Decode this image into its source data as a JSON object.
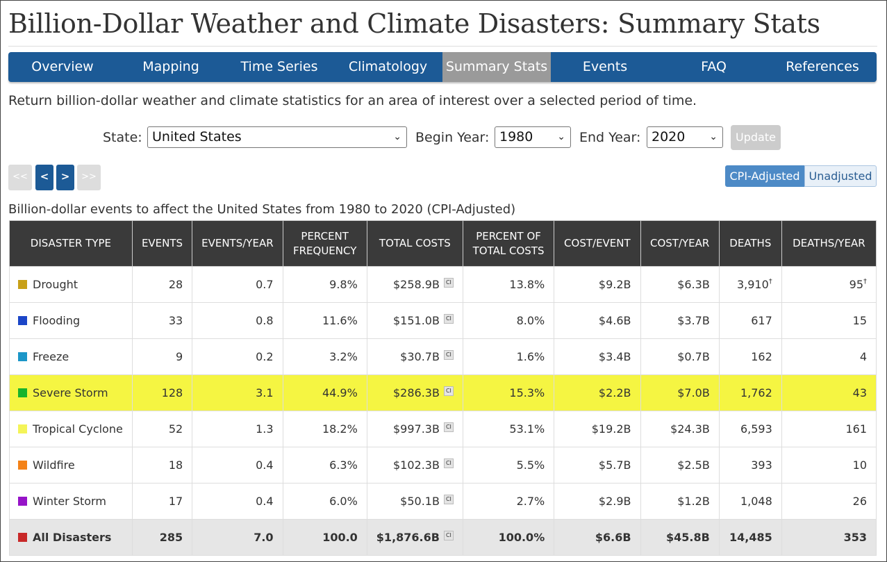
{
  "page": {
    "title": "Billion-Dollar Weather and Climate Disasters: Summary Stats",
    "intro": "Return billion-dollar weather and climate statistics for an area of interest over a selected period of time."
  },
  "nav": [
    {
      "label": "Overview",
      "active": false
    },
    {
      "label": "Mapping",
      "active": false
    },
    {
      "label": "Time Series",
      "active": false
    },
    {
      "label": "Climatology",
      "active": false
    },
    {
      "label": "Summary Stats",
      "active": true
    },
    {
      "label": "Events",
      "active": false
    },
    {
      "label": "FAQ",
      "active": false
    },
    {
      "label": "References",
      "active": false
    }
  ],
  "filters": {
    "state_label": "State:",
    "state_value": "United States",
    "begin_label": "Begin Year:",
    "begin_value": "1980",
    "end_label": "End Year:",
    "end_value": "2020",
    "update_label": "Update"
  },
  "pager": {
    "first": "<<",
    "prev": "<",
    "next": ">",
    "last": ">>"
  },
  "toggle": {
    "adjusted": "CPI-Adjusted",
    "unadjusted": "Unadjusted",
    "selected": "CPI-Adjusted"
  },
  "table": {
    "caption": "Billion-dollar events to affect the United States from 1980 to 2020 (CPI-Adjusted)",
    "ci_label": "CI",
    "columns": [
      "DISASTER TYPE",
      "EVENTS",
      "EVENTS/YEAR",
      "PERCENT FREQUENCY",
      "TOTAL COSTS",
      "PERCENT OF TOTAL COSTS",
      "COST/EVENT",
      "COST/YEAR",
      "DEATHS",
      "DEATHS/YEAR"
    ],
    "rows": [
      {
        "type": "Drought",
        "color": "#c8a018",
        "events": "28",
        "events_year": "0.7",
        "pct_freq": "9.8%",
        "total_costs": "$258.9B",
        "pct_costs": "13.8%",
        "cost_event": "$9.2B",
        "cost_year": "$6.3B",
        "deaths": "3,910",
        "deaths_mark": "†",
        "deaths_year": "95",
        "deaths_year_mark": "†",
        "highlight": false
      },
      {
        "type": "Flooding",
        "color": "#1c46c8",
        "events": "33",
        "events_year": "0.8",
        "pct_freq": "11.6%",
        "total_costs": "$151.0B",
        "pct_costs": "8.0%",
        "cost_event": "$4.6B",
        "cost_year": "$3.7B",
        "deaths": "617",
        "deaths_mark": "",
        "deaths_year": "15",
        "deaths_year_mark": "",
        "highlight": false
      },
      {
        "type": "Freeze",
        "color": "#1c96c8",
        "events": "9",
        "events_year": "0.2",
        "pct_freq": "3.2%",
        "total_costs": "$30.7B",
        "pct_costs": "1.6%",
        "cost_event": "$3.4B",
        "cost_year": "$0.7B",
        "deaths": "162",
        "deaths_mark": "",
        "deaths_year": "4",
        "deaths_year_mark": "",
        "highlight": false
      },
      {
        "type": "Severe Storm",
        "color": "#18b42c",
        "events": "128",
        "events_year": "3.1",
        "pct_freq": "44.9%",
        "total_costs": "$286.3B",
        "pct_costs": "15.3%",
        "cost_event": "$2.2B",
        "cost_year": "$7.0B",
        "deaths": "1,762",
        "deaths_mark": "",
        "deaths_year": "43",
        "deaths_year_mark": "",
        "highlight": true
      },
      {
        "type": "Tropical Cyclone",
        "color": "#f4f458",
        "events": "52",
        "events_year": "1.3",
        "pct_freq": "18.2%",
        "total_costs": "$997.3B",
        "pct_costs": "53.1%",
        "cost_event": "$19.2B",
        "cost_year": "$24.3B",
        "deaths": "6,593",
        "deaths_mark": "",
        "deaths_year": "161",
        "deaths_year_mark": "",
        "highlight": false
      },
      {
        "type": "Wildfire",
        "color": "#f48218",
        "events": "18",
        "events_year": "0.4",
        "pct_freq": "6.3%",
        "total_costs": "$102.3B",
        "pct_costs": "5.5%",
        "cost_event": "$5.7B",
        "cost_year": "$2.5B",
        "deaths": "393",
        "deaths_mark": "",
        "deaths_year": "10",
        "deaths_year_mark": "",
        "highlight": false
      },
      {
        "type": "Winter Storm",
        "color": "#9614c8",
        "events": "17",
        "events_year": "0.4",
        "pct_freq": "6.0%",
        "total_costs": "$50.1B",
        "pct_costs": "2.7%",
        "cost_event": "$2.9B",
        "cost_year": "$1.2B",
        "deaths": "1,048",
        "deaths_mark": "",
        "deaths_year": "26",
        "deaths_year_mark": "",
        "highlight": false
      }
    ],
    "total": {
      "type": "All Disasters",
      "color": "#c82828",
      "events": "285",
      "events_year": "7.0",
      "pct_freq": "100.0",
      "total_costs": "$1,876.6B",
      "pct_costs": "100.0%",
      "cost_event": "$6.6B",
      "cost_year": "$45.8B",
      "deaths": "14,485",
      "deaths_year": "353"
    }
  },
  "colors": {
    "nav_bg": "#1c5a96",
    "nav_active": "#9a9a9a",
    "header_bg": "#3a3a3a",
    "highlight": "#f5f542",
    "total_bg": "#e6e6e6"
  }
}
